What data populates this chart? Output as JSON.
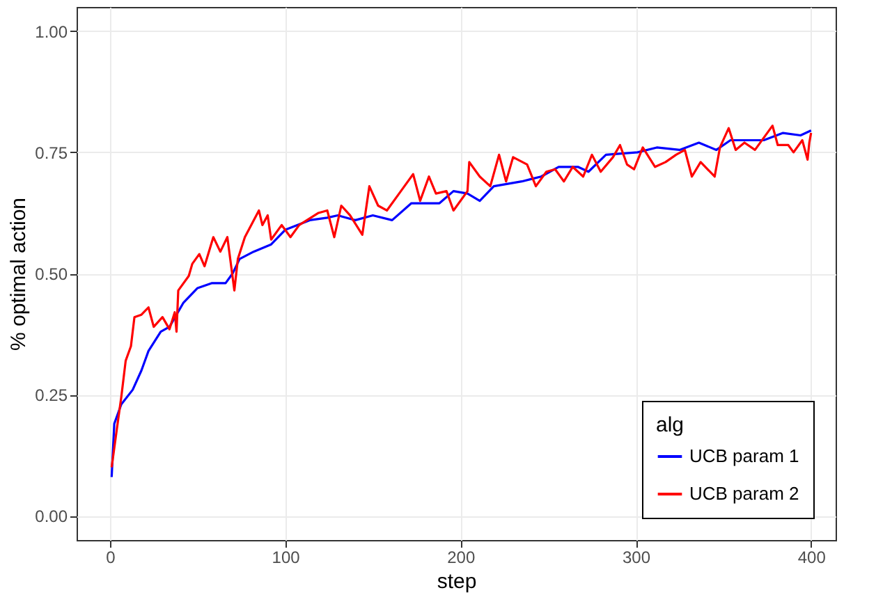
{
  "chart_data": {
    "type": "line",
    "xlabel": "step",
    "ylabel": "% optimal action",
    "legend_title": "alg",
    "legend": "bottom right",
    "grid": true,
    "xlim": [
      -19,
      414
    ],
    "ylim": [
      -0.05,
      1.05
    ],
    "xticks": [
      0,
      100,
      200,
      300,
      400
    ],
    "yticks": [
      {
        "value": 0,
        "label": "0.00"
      },
      {
        "value": 0.25,
        "label": "0.25"
      },
      {
        "value": 0.5,
        "label": "0.50"
      },
      {
        "value": 0.75,
        "label": "0.75"
      },
      {
        "value": 1,
        "label": "1.00"
      }
    ],
    "series": [
      {
        "name": "UCB param 1",
        "color": "#0000ff",
        "x": [
          1,
          2.5,
          6.5,
          13,
          18,
          22,
          29,
          34,
          42,
          50,
          58,
          66,
          70,
          74,
          82,
          92,
          100,
          114,
          124,
          130,
          140,
          150,
          161,
          172,
          188,
          196,
          204,
          211,
          219,
          235,
          246,
          256,
          267,
          273,
          283,
          301,
          312,
          325,
          336,
          346,
          354,
          373,
          384,
          394,
          400
        ],
        "values": [
          0.08,
          0.19,
          0.23,
          0.26,
          0.3,
          0.34,
          0.38,
          0.39,
          0.44,
          0.47,
          0.48,
          0.48,
          0.5,
          0.53,
          0.545,
          0.56,
          0.59,
          0.61,
          0.615,
          0.62,
          0.61,
          0.62,
          0.61,
          0.645,
          0.645,
          0.67,
          0.665,
          0.65,
          0.68,
          0.69,
          0.7,
          0.72,
          0.72,
          0.71,
          0.745,
          0.75,
          0.76,
          0.755,
          0.77,
          0.755,
          0.775,
          0.775,
          0.79,
          0.785,
          0.795
        ]
      },
      {
        "name": "UCB param 2",
        "color": "#ff0000",
        "x": [
          1,
          4,
          6.5,
          9,
          12,
          14,
          18,
          22,
          25,
          30,
          34,
          37,
          38,
          39,
          45,
          47,
          51,
          54,
          59,
          63,
          67,
          71,
          73,
          77,
          85,
          87,
          90,
          92,
          98,
          103,
          108,
          119,
          124,
          128,
          132,
          137,
          144,
          148,
          153,
          158,
          166,
          173,
          177,
          182,
          186,
          192,
          196,
          204,
          205,
          211,
          217,
          222,
          226,
          230,
          238,
          243,
          249,
          254,
          259,
          264,
          270,
          275,
          280,
          287,
          291,
          295,
          299,
          304,
          311,
          317,
          323,
          328,
          332,
          337,
          341,
          345,
          348,
          353,
          357,
          362,
          368,
          378,
          381,
          387,
          390,
          395,
          398,
          399,
          400
        ],
        "values": [
          0.1,
          0.18,
          0.245,
          0.32,
          0.35,
          0.41,
          0.415,
          0.43,
          0.39,
          0.41,
          0.385,
          0.42,
          0.38,
          0.465,
          0.495,
          0.52,
          0.54,
          0.515,
          0.575,
          0.545,
          0.575,
          0.465,
          0.53,
          0.575,
          0.63,
          0.6,
          0.62,
          0.57,
          0.6,
          0.575,
          0.6,
          0.625,
          0.63,
          0.575,
          0.64,
          0.62,
          0.58,
          0.68,
          0.64,
          0.63,
          0.67,
          0.705,
          0.65,
          0.7,
          0.665,
          0.67,
          0.63,
          0.67,
          0.73,
          0.7,
          0.68,
          0.745,
          0.69,
          0.74,
          0.725,
          0.68,
          0.71,
          0.715,
          0.69,
          0.72,
          0.7,
          0.745,
          0.71,
          0.74,
          0.765,
          0.725,
          0.715,
          0.76,
          0.72,
          0.73,
          0.745,
          0.755,
          0.7,
          0.73,
          0.715,
          0.7,
          0.76,
          0.8,
          0.755,
          0.77,
          0.755,
          0.805,
          0.765,
          0.765,
          0.75,
          0.775,
          0.735,
          0.77,
          0.79
        ]
      }
    ]
  }
}
